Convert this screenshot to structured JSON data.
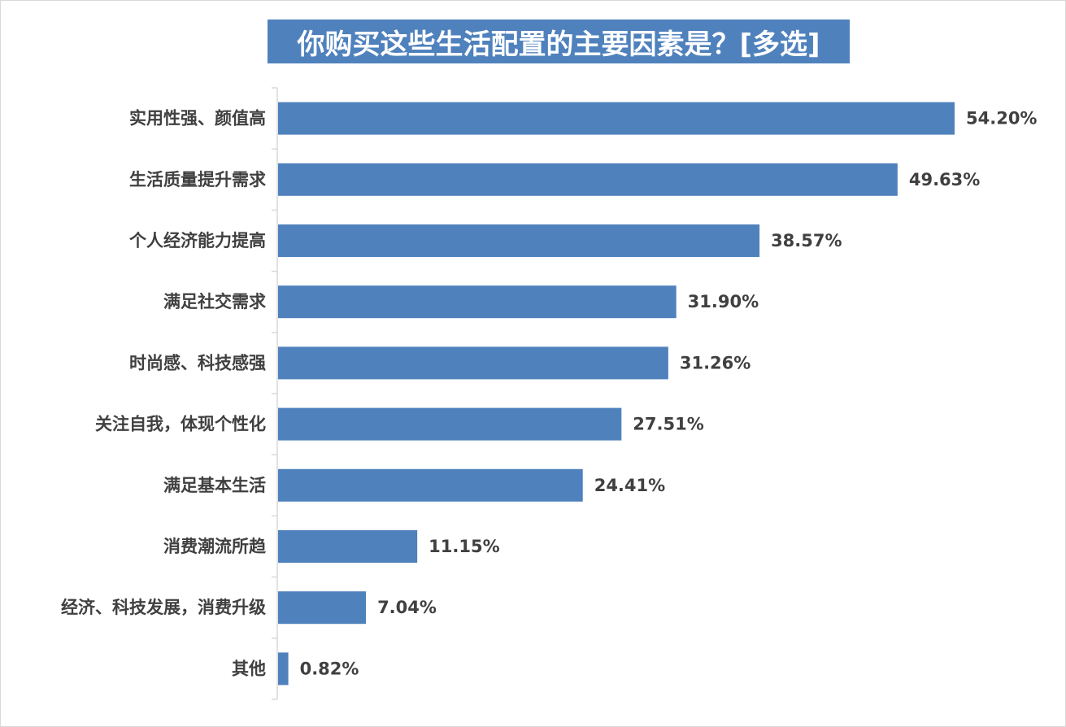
{
  "chart_data": {
    "type": "bar",
    "orientation": "horizontal",
    "title": "你购买这些生活配置的主要因素是？[多选]",
    "categories": [
      "实用性强、颜值高",
      "生活质量提升需求",
      "个人经济能力提高",
      "满足社交需求",
      "时尚感、科技感强",
      "关注自我，体现个性化",
      "满足基本生活",
      "消费潮流所趋",
      "经济、科技发展，消费升级",
      "其他"
    ],
    "values": [
      54.2,
      49.63,
      38.57,
      31.9,
      31.26,
      27.51,
      24.41,
      11.15,
      7.04,
      0.82
    ],
    "value_labels": [
      "54.20%",
      "49.63%",
      "38.57%",
      "31.90%",
      "31.26%",
      "27.51%",
      "24.41%",
      "11.15%",
      "7.04%",
      "0.82%"
    ],
    "unit": "%",
    "xlim": [
      0,
      54.2
    ],
    "grid": false,
    "legend": "none",
    "bar_color": "#4f81bd",
    "title_background": "#4f81bd",
    "title_color": "#ffffff",
    "label_color": "#404040"
  }
}
